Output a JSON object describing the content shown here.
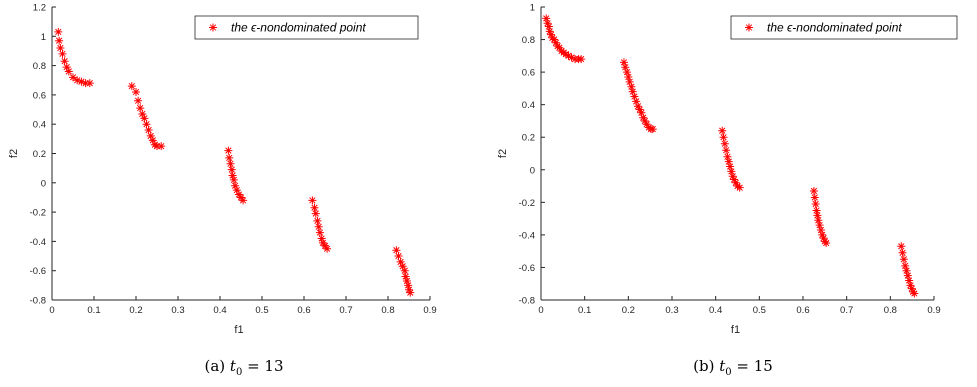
{
  "chart_data": [
    {
      "type": "scatter",
      "panel_id": "a",
      "xlabel": "f1",
      "ylabel": "f2",
      "xlim": [
        0,
        0.9
      ],
      "ylim": [
        -0.8,
        1.2
      ],
      "xticks": [
        "0",
        "0.1",
        "0.2",
        "0.3",
        "0.4",
        "0.5",
        "0.6",
        "0.7",
        "0.8",
        "0.9"
      ],
      "yticks": [
        "-0.8",
        "-0.6",
        "-0.4",
        "-0.2",
        "0",
        "0.2",
        "0.4",
        "0.6",
        "0.8",
        "1",
        "1.2"
      ],
      "grid": false,
      "legend_position": "top-right",
      "caption": {
        "label": "(a)",
        "var": "t",
        "sub": "0",
        "rel": "= 13"
      },
      "series": [
        {
          "name": "the ϵ-nondominated point",
          "marker": "*",
          "color": "#ff0000",
          "x": [
            0.015,
            0.017,
            0.02,
            0.025,
            0.03,
            0.035,
            0.04,
            0.05,
            0.06,
            0.07,
            0.08,
            0.09,
            0.19,
            0.2,
            0.205,
            0.21,
            0.215,
            0.22,
            0.225,
            0.23,
            0.235,
            0.24,
            0.245,
            0.25,
            0.26,
            0.42,
            0.422,
            0.425,
            0.428,
            0.43,
            0.433,
            0.436,
            0.44,
            0.445,
            0.45,
            0.455,
            0.62,
            0.625,
            0.628,
            0.632,
            0.635,
            0.638,
            0.642,
            0.645,
            0.65,
            0.655,
            0.82,
            0.825,
            0.83,
            0.835,
            0.84,
            0.842,
            0.845,
            0.848,
            0.85,
            0.853
          ],
          "y": [
            1.03,
            0.97,
            0.92,
            0.88,
            0.83,
            0.79,
            0.76,
            0.72,
            0.7,
            0.69,
            0.68,
            0.68,
            0.66,
            0.62,
            0.56,
            0.51,
            0.47,
            0.44,
            0.4,
            0.36,
            0.32,
            0.29,
            0.26,
            0.25,
            0.25,
            0.22,
            0.17,
            0.13,
            0.09,
            0.05,
            0.02,
            -0.02,
            -0.05,
            -0.08,
            -0.1,
            -0.12,
            -0.12,
            -0.17,
            -0.21,
            -0.26,
            -0.3,
            -0.34,
            -0.38,
            -0.41,
            -0.43,
            -0.45,
            -0.46,
            -0.5,
            -0.54,
            -0.57,
            -0.6,
            -0.64,
            -0.67,
            -0.7,
            -0.73,
            -0.75
          ]
        }
      ]
    },
    {
      "type": "scatter",
      "panel_id": "b",
      "xlabel": "f1",
      "ylabel": "f2",
      "xlim": [
        0,
        0.9
      ],
      "ylim": [
        -0.8,
        1.0
      ],
      "xticks": [
        "0",
        "0.1",
        "0.2",
        "0.3",
        "0.4",
        "0.5",
        "0.6",
        "0.7",
        "0.8",
        "0.9"
      ],
      "yticks": [
        "-0.8",
        "-0.6",
        "-0.4",
        "-0.2",
        "0",
        "0.2",
        "0.4",
        "0.6",
        "0.8",
        "1"
      ],
      "grid": false,
      "legend_position": "top-right",
      "caption": {
        "label": "(b)",
        "var": "t",
        "sub": "0",
        "rel": "= 15"
      },
      "series": [
        {
          "name": "the ϵ-nondominated point",
          "marker": "*",
          "color": "#ff0000",
          "x": [
            0.012,
            0.015,
            0.018,
            0.02,
            0.023,
            0.026,
            0.03,
            0.034,
            0.038,
            0.042,
            0.047,
            0.052,
            0.057,
            0.063,
            0.07,
            0.078,
            0.086,
            0.092,
            0.19,
            0.193,
            0.197,
            0.2,
            0.203,
            0.207,
            0.21,
            0.214,
            0.218,
            0.222,
            0.226,
            0.23,
            0.234,
            0.238,
            0.242,
            0.247,
            0.252,
            0.256,
            0.415,
            0.418,
            0.421,
            0.424,
            0.427,
            0.43,
            0.433,
            0.436,
            0.439,
            0.442,
            0.446,
            0.45,
            0.455,
            0.625,
            0.627,
            0.629,
            0.631,
            0.633,
            0.635,
            0.638,
            0.641,
            0.644,
            0.647,
            0.65,
            0.653,
            0.825,
            0.828,
            0.831,
            0.834,
            0.837,
            0.84,
            0.843,
            0.846,
            0.849,
            0.852,
            0.855
          ],
          "y": [
            0.93,
            0.9,
            0.88,
            0.85,
            0.83,
            0.81,
            0.8,
            0.78,
            0.76,
            0.75,
            0.73,
            0.72,
            0.71,
            0.7,
            0.69,
            0.68,
            0.68,
            0.68,
            0.66,
            0.63,
            0.6,
            0.57,
            0.54,
            0.51,
            0.48,
            0.45,
            0.42,
            0.39,
            0.37,
            0.35,
            0.32,
            0.3,
            0.28,
            0.26,
            0.25,
            0.25,
            0.24,
            0.2,
            0.16,
            0.12,
            0.08,
            0.05,
            0.02,
            -0.01,
            -0.04,
            -0.06,
            -0.08,
            -0.1,
            -0.11,
            -0.13,
            -0.17,
            -0.21,
            -0.25,
            -0.28,
            -0.31,
            -0.34,
            -0.37,
            -0.4,
            -0.42,
            -0.44,
            -0.45,
            -0.47,
            -0.51,
            -0.55,
            -0.59,
            -0.62,
            -0.65,
            -0.68,
            -0.71,
            -0.73,
            -0.75,
            -0.76
          ]
        }
      ]
    }
  ]
}
